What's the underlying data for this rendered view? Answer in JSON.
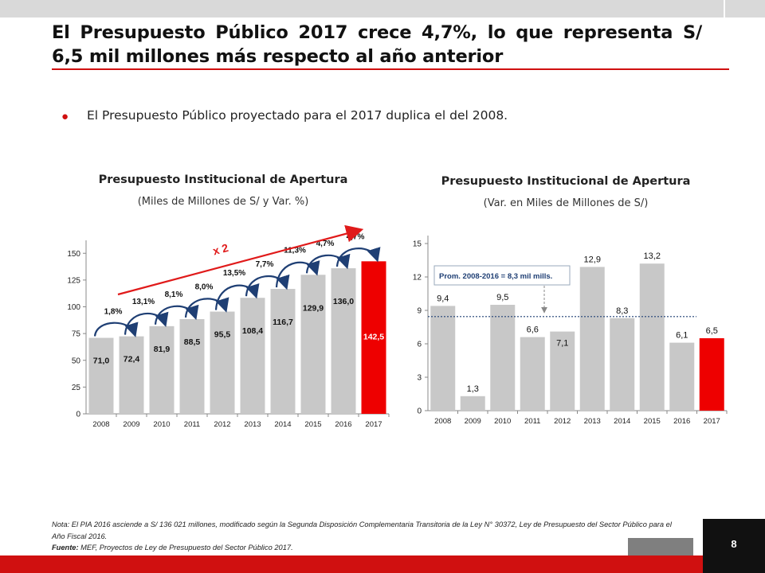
{
  "slide": {
    "title": "El Presupuesto Público 2017 crece 4,7%, lo que representa S/ 6,5 mil millones más respecto al año anterior",
    "bullet": "El Presupuesto Público proyectado para el 2017 duplica el del 2008.",
    "page_number": "8",
    "note1": "Nota: El PIA 2016 asciende a S/ 136 021 millones, modificado  según la Segunda  Disposición Complementaria Transitoria de la Ley N° 30372, Ley de Presupuesto del Sector Público para el Año Fiscal 2016.",
    "source_label": "Fuente:",
    "source_text": " MEF, Proyectos de Ley de Presupuesto del Sector Público 2017.",
    "accent_color": "#d01010"
  },
  "chart_data": [
    {
      "type": "bar",
      "title": "Presupuesto Institucional de Apertura",
      "subtitle": "(Miles de Millones de S/ y Var. %)",
      "categories": [
        "2008",
        "2009",
        "2010",
        "2011",
        "2012",
        "2013",
        "2014",
        "2015",
        "2016",
        "2017"
      ],
      "values": [
        71.0,
        72.4,
        81.9,
        88.5,
        95.5,
        108.4,
        116.7,
        129.9,
        136.0,
        142.5
      ],
      "value_labels": [
        "71,0",
        "72,4",
        "81,9",
        "88,5",
        "95,5",
        "108,4",
        "116,7",
        "129,9",
        "136,0",
        "142,5"
      ],
      "growth_labels": [
        "1,8%",
        "13,1%",
        "8,1%",
        "8,0%",
        "13,5%",
        "7,7%",
        "11,3%",
        "4,7%",
        "4,7%"
      ],
      "highlight_annotation": "x 2",
      "yticks": [
        "0",
        "25",
        "50",
        "75",
        "100",
        "125",
        "150"
      ],
      "ylim": [
        0,
        160
      ],
      "bar_color": "#c8c8c8",
      "highlight_color": "#ee0000",
      "highlight_index": 9
    },
    {
      "type": "bar",
      "title": "Presupuesto Institucional de Apertura",
      "subtitle": "(Var. en Miles de Millones de S/)",
      "categories": [
        "2008",
        "2009",
        "2010",
        "2011",
        "2012",
        "2013",
        "2014",
        "2015",
        "2016",
        "2017"
      ],
      "values": [
        9.4,
        1.3,
        9.5,
        6.6,
        7.1,
        12.9,
        8.3,
        13.2,
        6.1,
        6.5
      ],
      "value_labels": [
        "9,4",
        "1,3",
        "9,5",
        "6,6",
        "7,1",
        "12,9",
        "8,3",
        "13,2",
        "6,1",
        "6,5"
      ],
      "yticks": [
        "0",
        "3",
        "6",
        "9",
        "12",
        "15"
      ],
      "ylim": [
        0,
        15
      ],
      "average_value": 8.3,
      "average_label": "Prom. 2008-2016 = 8,3 mil mills.",
      "bar_color": "#c8c8c8",
      "highlight_color": "#ee0000",
      "highlight_index": 9
    }
  ]
}
